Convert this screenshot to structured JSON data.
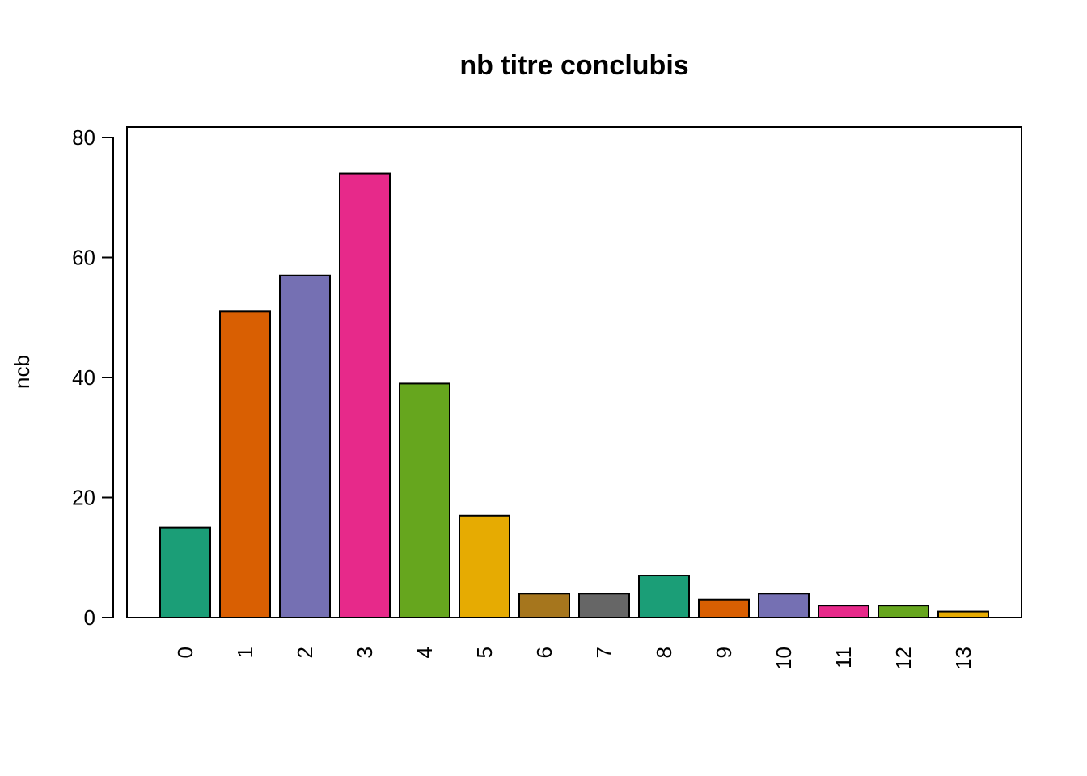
{
  "chart_data": {
    "type": "bar",
    "title": "nb titre conclubis",
    "xlabel": "",
    "ylabel": "ncb",
    "ylim": [
      0,
      80
    ],
    "yticks": [
      0,
      20,
      40,
      60,
      80
    ],
    "categories": [
      "0",
      "1",
      "2",
      "3",
      "4",
      "5",
      "6",
      "7",
      "8",
      "9",
      "10",
      "11",
      "12",
      "13"
    ],
    "values": [
      15,
      51,
      57,
      74,
      39,
      17,
      4,
      4,
      7,
      3,
      4,
      2,
      2,
      1
    ],
    "colors": [
      "#1B9E77",
      "#D95F02",
      "#7570B3",
      "#E7298A",
      "#66A61E",
      "#E6AB02",
      "#A6761D",
      "#666666",
      "#1B9E77",
      "#D95F02",
      "#7570B3",
      "#E7298A",
      "#66A61E",
      "#E6AB02"
    ],
    "box": true,
    "grid": false
  }
}
